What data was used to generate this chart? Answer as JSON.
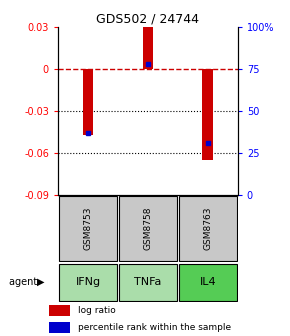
{
  "title": "GDS502 / 24744",
  "samples": [
    "GSM8753",
    "GSM8758",
    "GSM8763"
  ],
  "agents": [
    "IFNg",
    "TNFa",
    "IL4"
  ],
  "log_ratios": [
    -0.047,
    0.03,
    -0.065
  ],
  "percentile_ranks": [
    0.37,
    0.78,
    0.31
  ],
  "left_yticks": [
    0.03,
    0.0,
    -0.03,
    -0.06,
    -0.09
  ],
  "right_ytick_labels": [
    "100%",
    "75",
    "50",
    "25",
    "0"
  ],
  "right_ytick_values": [
    1.0,
    0.75,
    0.5,
    0.25,
    0.0
  ],
  "ymin": -0.09,
  "ymax": 0.03,
  "bar_color": "#cc0000",
  "percentile_color": "#0000cc",
  "zero_line_color": "#cc0000",
  "sample_box_color": "#c8c8c8",
  "agent_box_color_light": "#aaddaa",
  "agent_box_color_dark": "#66cc66",
  "bar_width": 0.18,
  "x_positions": [
    0,
    1,
    2
  ],
  "agent_green_light": "#b8f0b8",
  "agent_green_dark": "#55cc55"
}
